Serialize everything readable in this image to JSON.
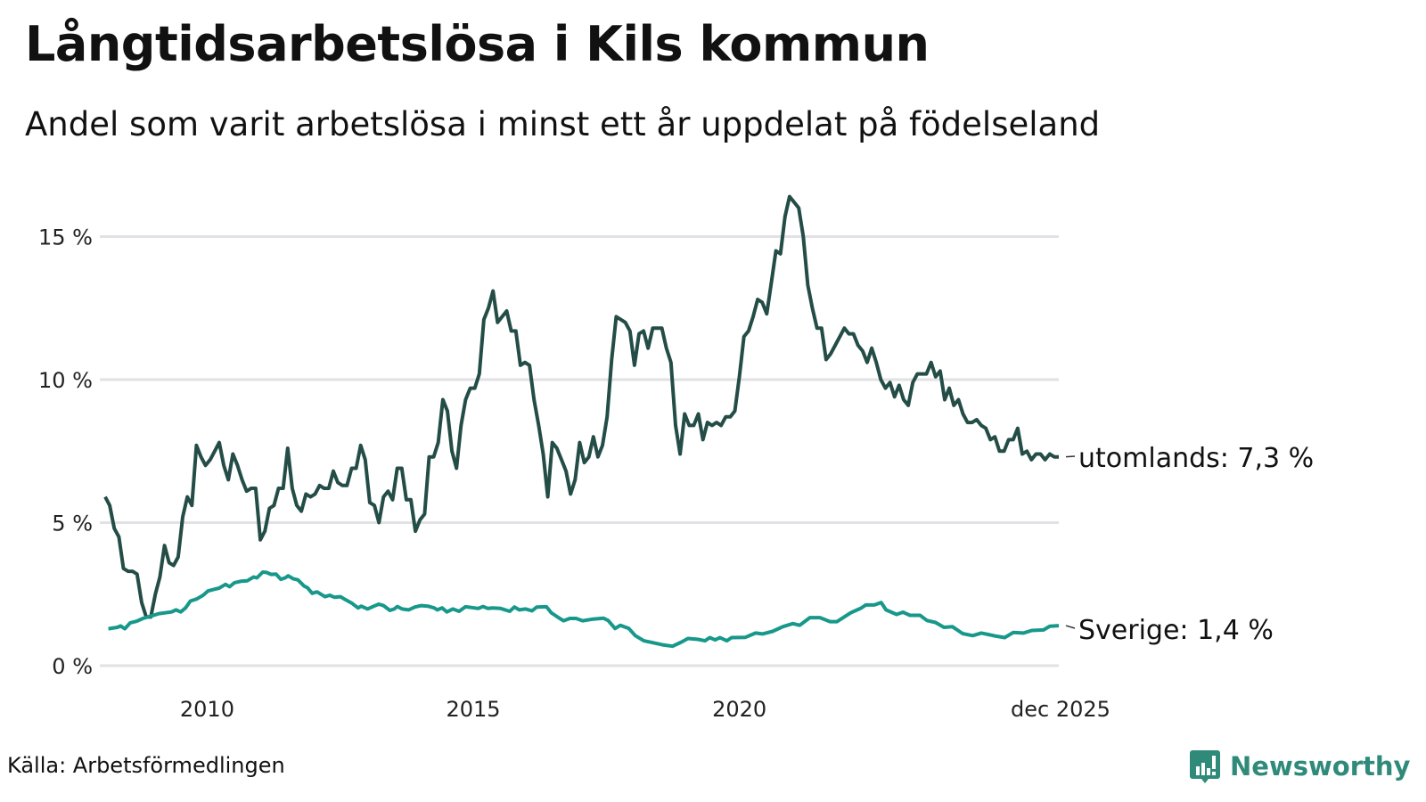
{
  "title": "Långtidsarbetslösa i Kils kommun",
  "subtitle": "Andel som varit arbetslösa i minst ett år uppdelat på födelseland",
  "source": "Källa: Arbetsförmedlingen",
  "logo": "Newsworthy",
  "colors": {
    "utomlands": "#234d46",
    "sverige": "#17988a",
    "grid": "#e2e2e6",
    "brand": "#2f8a7a"
  },
  "chart_data": {
    "type": "line",
    "title": "Långtidsarbetslösa i Kils kommun",
    "xlabel": "",
    "ylabel": "",
    "xlim": [
      2008.0,
      2025.917
    ],
    "ylim": [
      0,
      17
    ],
    "yticks": [
      {
        "value": 0,
        "label": "0 %"
      },
      {
        "value": 5,
        "label": "5 %"
      },
      {
        "value": 10,
        "label": "10 %"
      },
      {
        "value": 15,
        "label": "15 %"
      }
    ],
    "xticks": [
      {
        "value": 2010,
        "label": "2010"
      },
      {
        "value": 2015,
        "label": "2015"
      },
      {
        "value": 2020,
        "label": "2020"
      },
      {
        "value": 2025.917,
        "label": "dec 2025"
      }
    ],
    "grid": true,
    "series": [
      {
        "name": "utomlands",
        "end_label": "utomlands: 7,3 %",
        "x_range": [
          2008.0,
          2025.917
        ],
        "values": [
          5.9,
          5.6,
          4.8,
          4.5,
          3.4,
          3.3,
          3.3,
          3.2,
          2.2,
          1.7,
          1.7,
          2.5,
          3.1,
          4.2,
          3.6,
          3.5,
          3.8,
          5.2,
          5.9,
          5.6,
          7.7,
          7.3,
          7.0,
          7.2,
          7.5,
          7.8,
          7.0,
          6.5,
          7.4,
          7.0,
          6.5,
          6.1,
          6.2,
          6.2,
          4.4,
          4.7,
          5.5,
          5.6,
          6.2,
          6.2,
          7.6,
          6.2,
          5.6,
          5.4,
          6.0,
          5.9,
          6.0,
          6.3,
          6.2,
          6.2,
          6.8,
          6.4,
          6.3,
          6.3,
          6.9,
          6.9,
          7.7,
          7.2,
          5.7,
          5.6,
          5.0,
          5.9,
          6.1,
          5.8,
          6.9,
          6.9,
          5.8,
          5.8,
          4.7,
          5.1,
          5.3,
          7.3,
          7.3,
          7.8,
          9.3,
          8.9,
          7.5,
          6.9,
          8.4,
          9.3,
          9.7,
          9.7,
          10.2,
          12.1,
          12.5,
          13.1,
          12.0,
          12.2,
          12.4,
          11.7,
          11.7,
          10.5,
          10.6,
          10.5,
          9.3,
          8.4,
          7.4,
          5.9,
          7.8,
          7.6,
          7.2,
          6.8,
          6.0,
          6.5,
          7.8,
          7.1,
          7.3,
          8.0,
          7.3,
          7.7,
          8.7,
          10.7,
          12.2,
          12.1,
          12.0,
          11.7,
          10.5,
          11.6,
          11.7,
          11.1,
          11.8,
          11.8,
          11.8,
          11.1,
          10.6,
          8.4,
          7.4,
          8.8,
          8.4,
          8.4,
          8.8,
          7.9,
          8.5,
          8.4,
          8.5,
          8.4,
          8.7,
          8.7,
          8.9,
          10.1,
          11.5,
          11.7,
          12.2,
          12.8,
          12.7,
          12.3,
          13.4,
          14.5,
          14.4,
          15.7,
          16.4,
          16.2,
          16.0,
          15.0,
          13.3,
          12.5,
          11.8,
          11.8,
          10.7,
          10.9,
          11.2,
          11.5,
          11.8,
          11.6,
          11.6,
          11.2,
          11.0,
          10.6,
          11.1,
          10.6,
          10.0,
          9.7,
          9.9,
          9.4,
          9.8,
          9.3,
          9.1,
          9.9,
          10.2,
          10.2,
          10.2,
          10.6,
          10.1,
          10.3,
          9.3,
          9.7,
          9.1,
          9.3,
          8.8,
          8.5,
          8.5,
          8.6,
          8.4,
          8.3,
          7.9,
          8.0,
          7.5,
          7.5,
          7.9,
          7.9,
          8.3,
          7.4,
          7.5,
          7.2,
          7.4,
          7.4,
          7.2,
          7.4,
          7.3,
          7.3
        ]
      },
      {
        "name": "Sverige",
        "end_label": "Sverige: 1,4 %",
        "points": [
          [
            2008.06,
            1.29
          ],
          [
            2008.23,
            1.34
          ],
          [
            2008.29,
            1.39
          ],
          [
            2008.37,
            1.29
          ],
          [
            2008.47,
            1.5
          ],
          [
            2008.59,
            1.55
          ],
          [
            2008.71,
            1.65
          ],
          [
            2008.89,
            1.75
          ],
          [
            2009.01,
            1.82
          ],
          [
            2009.25,
            1.88
          ],
          [
            2009.33,
            1.95
          ],
          [
            2009.42,
            1.88
          ],
          [
            2009.51,
            2.02
          ],
          [
            2009.6,
            2.26
          ],
          [
            2009.72,
            2.33
          ],
          [
            2009.84,
            2.46
          ],
          [
            2009.93,
            2.61
          ],
          [
            2010.05,
            2.67
          ],
          [
            2010.14,
            2.71
          ],
          [
            2010.26,
            2.84
          ],
          [
            2010.34,
            2.76
          ],
          [
            2010.43,
            2.9
          ],
          [
            2010.55,
            2.95
          ],
          [
            2010.67,
            2.97
          ],
          [
            2010.79,
            3.1
          ],
          [
            2010.85,
            3.07
          ],
          [
            2010.96,
            3.27
          ],
          [
            2011.03,
            3.26
          ],
          [
            2011.12,
            3.19
          ],
          [
            2011.21,
            3.2
          ],
          [
            2011.3,
            3.02
          ],
          [
            2011.38,
            3.07
          ],
          [
            2011.44,
            3.14
          ],
          [
            2011.53,
            3.04
          ],
          [
            2011.62,
            3.0
          ],
          [
            2011.74,
            2.78
          ],
          [
            2011.8,
            2.73
          ],
          [
            2011.89,
            2.53
          ],
          [
            2011.98,
            2.58
          ],
          [
            2012.13,
            2.41
          ],
          [
            2012.22,
            2.46
          ],
          [
            2012.31,
            2.39
          ],
          [
            2012.42,
            2.41
          ],
          [
            2012.51,
            2.31
          ],
          [
            2012.63,
            2.19
          ],
          [
            2012.75,
            2.02
          ],
          [
            2012.81,
            2.08
          ],
          [
            2012.93,
            1.98
          ],
          [
            2013.05,
            2.08
          ],
          [
            2013.14,
            2.15
          ],
          [
            2013.23,
            2.1
          ],
          [
            2013.35,
            1.93
          ],
          [
            2013.43,
            1.98
          ],
          [
            2013.49,
            2.07
          ],
          [
            2013.58,
            1.98
          ],
          [
            2013.7,
            1.95
          ],
          [
            2013.82,
            2.05
          ],
          [
            2013.94,
            2.1
          ],
          [
            2014.06,
            2.08
          ],
          [
            2014.18,
            2.02
          ],
          [
            2014.24,
            1.95
          ],
          [
            2014.33,
            2.02
          ],
          [
            2014.42,
            1.88
          ],
          [
            2014.53,
            1.98
          ],
          [
            2014.65,
            1.9
          ],
          [
            2014.77,
            2.06
          ],
          [
            2014.89,
            2.03
          ],
          [
            2015.01,
            2.0
          ],
          [
            2015.1,
            2.07
          ],
          [
            2015.19,
            2.0
          ],
          [
            2015.28,
            2.02
          ],
          [
            2015.43,
            2.0
          ],
          [
            2015.6,
            1.9
          ],
          [
            2015.69,
            2.05
          ],
          [
            2015.78,
            1.95
          ],
          [
            2015.9,
            1.98
          ],
          [
            2016.02,
            1.92
          ],
          [
            2016.11,
            2.05
          ],
          [
            2016.29,
            2.06
          ],
          [
            2016.38,
            1.85
          ],
          [
            2016.5,
            1.7
          ],
          [
            2016.61,
            1.57
          ],
          [
            2016.73,
            1.65
          ],
          [
            2016.85,
            1.65
          ],
          [
            2016.97,
            1.57
          ],
          [
            2017.17,
            1.63
          ],
          [
            2017.36,
            1.66
          ],
          [
            2017.45,
            1.58
          ],
          [
            2017.58,
            1.3
          ],
          [
            2017.68,
            1.41
          ],
          [
            2017.84,
            1.3
          ],
          [
            2017.96,
            1.05
          ],
          [
            2018.12,
            0.87
          ],
          [
            2018.25,
            0.82
          ],
          [
            2018.47,
            0.73
          ],
          [
            2018.66,
            0.68
          ],
          [
            2018.82,
            0.82
          ],
          [
            2018.95,
            0.95
          ],
          [
            2019.14,
            0.92
          ],
          [
            2019.27,
            0.87
          ],
          [
            2019.36,
            0.98
          ],
          [
            2019.46,
            0.9
          ],
          [
            2019.55,
            0.98
          ],
          [
            2019.68,
            0.87
          ],
          [
            2019.77,
            0.98
          ],
          [
            2020.03,
            0.99
          ],
          [
            2020.22,
            1.14
          ],
          [
            2020.35,
            1.11
          ],
          [
            2020.54,
            1.2
          ],
          [
            2020.73,
            1.36
          ],
          [
            2020.92,
            1.47
          ],
          [
            2021.05,
            1.41
          ],
          [
            2021.24,
            1.68
          ],
          [
            2021.43,
            1.68
          ],
          [
            2021.62,
            1.54
          ],
          [
            2021.75,
            1.54
          ],
          [
            2022.01,
            1.85
          ],
          [
            2022.2,
            2.01
          ],
          [
            2022.29,
            2.12
          ],
          [
            2022.45,
            2.12
          ],
          [
            2022.58,
            2.21
          ],
          [
            2022.67,
            1.95
          ],
          [
            2022.87,
            1.79
          ],
          [
            2022.99,
            1.87
          ],
          [
            2023.12,
            1.76
          ],
          [
            2023.31,
            1.76
          ],
          [
            2023.44,
            1.58
          ],
          [
            2023.6,
            1.51
          ],
          [
            2023.76,
            1.34
          ],
          [
            2023.92,
            1.36
          ],
          [
            2024.11,
            1.12
          ],
          [
            2024.3,
            1.05
          ],
          [
            2024.46,
            1.14
          ],
          [
            2024.59,
            1.09
          ],
          [
            2024.74,
            1.03
          ],
          [
            2024.9,
            0.98
          ],
          [
            2025.06,
            1.16
          ],
          [
            2025.25,
            1.14
          ],
          [
            2025.41,
            1.23
          ],
          [
            2025.63,
            1.25
          ],
          [
            2025.75,
            1.38
          ],
          [
            2025.917,
            1.4
          ]
        ]
      }
    ]
  }
}
